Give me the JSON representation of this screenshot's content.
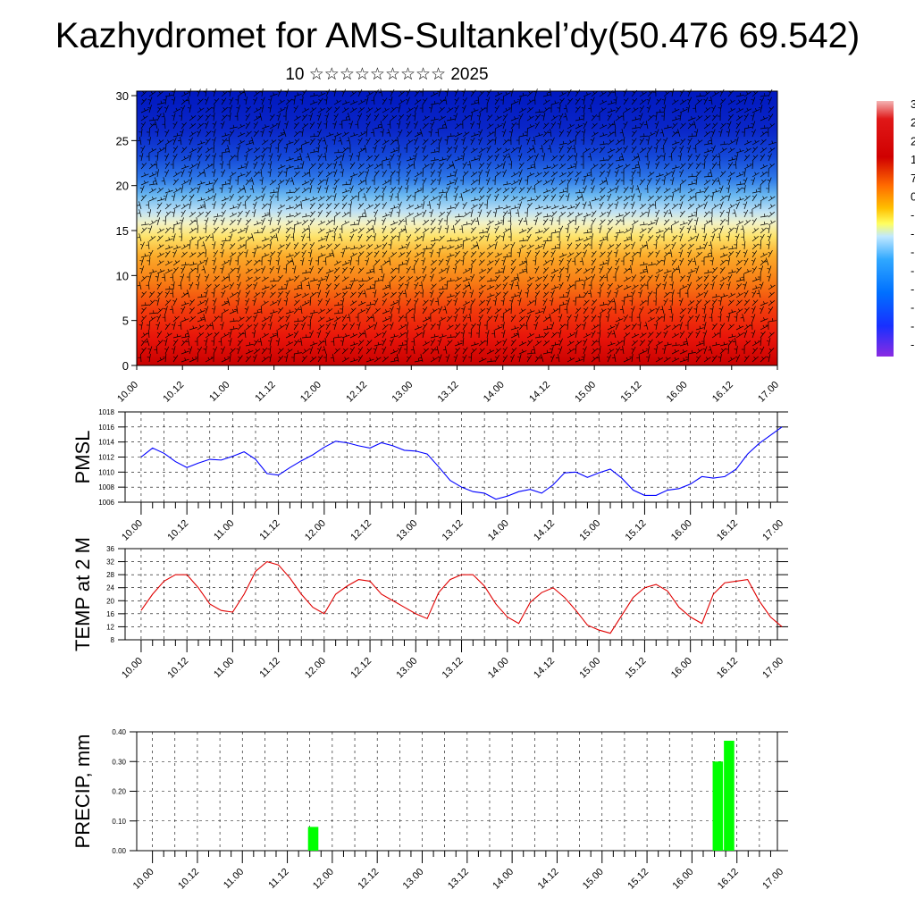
{
  "title": "Kazhydromet for AMS-Sultankel’dy(50.476 69.542)",
  "subtitle": "10 ☆☆☆☆☆☆☆☆☆ 2025",
  "colors": {
    "pmsl_line": "#0000ff",
    "temp_line": "#e00000",
    "precip_bar": "#00ff00",
    "wind_barb": "#000000"
  },
  "x_tick_labels": [
    "10.00",
    "10.12",
    "11.00",
    "11.12",
    "12.00",
    "12.12",
    "13.00",
    "13.12",
    "14.00",
    "14.12",
    "15.00",
    "15.12",
    "16.00",
    "16.12",
    "17.00"
  ],
  "chart_data": [
    {
      "type": "heatmap",
      "name": "cross-section",
      "y_tick_labels": [
        "0",
        "5",
        "10",
        "15",
        "20",
        "25",
        "30"
      ],
      "ylim": [
        0,
        30.5
      ],
      "x_range": [
        "10.00",
        "17.00"
      ],
      "colorbar": {
        "position": "right",
        "tick_labels": [
          "3",
          "2",
          "2",
          "1",
          "7",
          "0",
          "-",
          "-",
          "-",
          "-",
          "-",
          "-",
          "-",
          "-"
        ]
      },
      "overlay": "wind barbs"
    },
    {
      "type": "line",
      "ylabel": "PMSL",
      "ylim": [
        1006,
        1018
      ],
      "y_tick_labels": [
        "1006",
        "1008",
        "1010",
        "1012",
        "1014",
        "1016",
        "1018"
      ],
      "grid": true,
      "x_step_hours": 3,
      "values": [
        1012.0,
        1013.2,
        1012.5,
        1011.4,
        1010.6,
        1011.2,
        1011.7,
        1011.6,
        1012.1,
        1012.7,
        1011.7,
        1009.8,
        1009.6,
        1010.6,
        1011.5,
        1012.3,
        1013.3,
        1014.1,
        1013.9,
        1013.5,
        1013.2,
        1013.9,
        1013.5,
        1012.9,
        1012.8,
        1012.4,
        1010.7,
        1008.9,
        1008.0,
        1007.4,
        1007.2,
        1006.4,
        1006.8,
        1007.4,
        1007.7,
        1007.2,
        1008.3,
        1009.9,
        1010.0,
        1009.3,
        1009.9,
        1010.4,
        1009.2,
        1007.6,
        1006.9,
        1006.9,
        1007.6,
        1007.8,
        1008.4,
        1009.4,
        1009.2,
        1009.4,
        1010.4,
        1012.4,
        1013.8,
        1014.9,
        1016.0
      ]
    },
    {
      "type": "line",
      "ylabel": "TEMP at 2 M",
      "ylim": [
        8,
        36
      ],
      "y_tick_labels": [
        "8",
        "12",
        "16",
        "20",
        "24",
        "28",
        "32",
        "36"
      ],
      "grid": true,
      "x_step_hours": 3,
      "values": [
        17,
        22,
        26,
        28,
        28,
        24,
        19,
        17,
        16.5,
        22,
        29,
        32,
        31,
        27,
        22,
        18,
        16,
        22,
        24.5,
        26.5,
        26,
        22,
        20,
        18,
        16,
        14.5,
        22.5,
        26.5,
        28,
        28,
        24.5,
        19,
        15,
        13,
        19.5,
        22.5,
        24,
        21,
        17,
        12.5,
        11,
        10,
        15.5,
        21,
        24,
        25,
        23,
        18,
        15,
        13,
        22,
        25.5,
        26,
        26.5,
        20,
        15,
        12
      ]
    },
    {
      "type": "bar",
      "ylabel": "PRECIP, mm",
      "ylim": [
        0,
        0.4
      ],
      "y_tick_labels": [
        "0.00",
        "0.10",
        "0.20",
        "0.30",
        "0.40"
      ],
      "grid": true,
      "bars": [
        {
          "at": "11.18",
          "value": 0.08
        },
        {
          "at": "16.06",
          "value": 0.3
        },
        {
          "at": "16.09",
          "value": 0.37
        }
      ]
    }
  ]
}
